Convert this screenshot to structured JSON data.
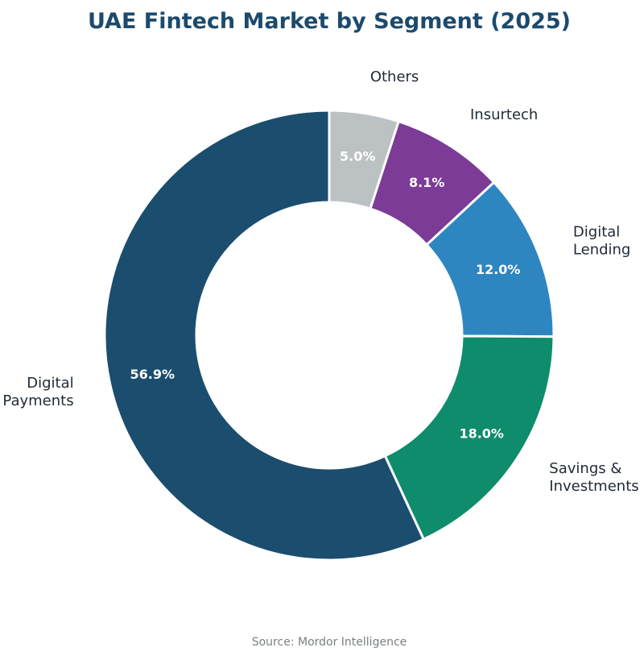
{
  "chart_data": {
    "type": "pie",
    "variant": "donut",
    "title": "UAE Fintech Market by Segment (2025)",
    "source": "Source: Mordor Intelligence",
    "start_angle_deg": 90,
    "direction": "clockwise",
    "legend": "none",
    "slices": [
      {
        "label": "Others",
        "value": 5.0,
        "display": "5.0%",
        "color": "#bcc1c4"
      },
      {
        "label": "Insurtech",
        "value": 8.1,
        "display": "8.1%",
        "color": "#7b3b96"
      },
      {
        "label": "Digital\nLending",
        "value": 12.0,
        "display": "12.0%",
        "color": "#2e86c1"
      },
      {
        "label": "Savings &\nInvestments",
        "value": 18.0,
        "display": "18.0%",
        "color": "#0e8c6c"
      },
      {
        "label": "Digital\nPayments",
        "value": 56.9,
        "display": "56.9%",
        "color": "#1b4d6e"
      }
    ]
  }
}
